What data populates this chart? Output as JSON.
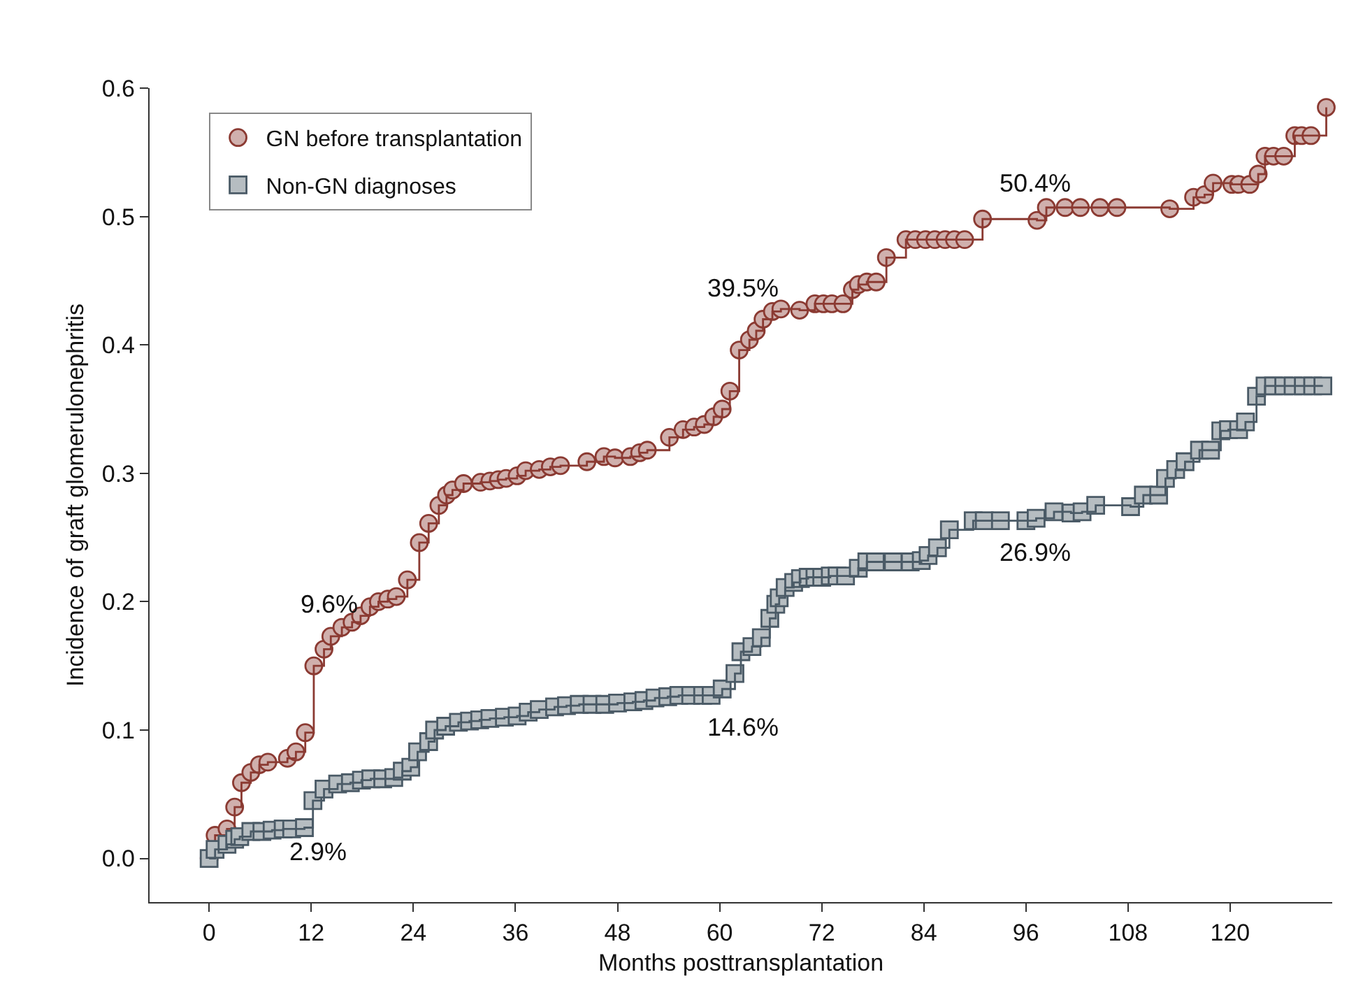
{
  "chart_data": {
    "type": "step",
    "xlabel": "Months posttransplantation",
    "ylabel": "Incidence of graft glomerulonephritis",
    "xlim": [
      -7,
      132
    ],
    "xticks": [
      0,
      12,
      24,
      36,
      48,
      60,
      72,
      84,
      96,
      108,
      120
    ],
    "ylim": [
      -0.034,
      0.6
    ],
    "yticks": [
      {
        "value": 0,
        "label": "0.0"
      },
      0.1,
      0.2,
      0.3,
      0.4,
      0.5,
      0.6
    ],
    "grid": false,
    "legend": "top left",
    "series": [
      {
        "name": "GN before transplantation",
        "color": "#8b3a32",
        "marker": "circle",
        "x": [
          0,
          0.7,
          2.1,
          3,
          3.8,
          4.9,
          5.9,
          6.9,
          9.2,
          10.2,
          11.3,
          12.3,
          13.5,
          14.3,
          15.6,
          16.8,
          17.8,
          18.9,
          19.9,
          21,
          22,
          23.3,
          24.7,
          25.8,
          27,
          27.9,
          28.6,
          29.9,
          31.9,
          33,
          34,
          34.9,
          36.2,
          37.2,
          38.8,
          40.1,
          41.3,
          44.4,
          46.4,
          47.7,
          49.5,
          50.6,
          51.5,
          54.1,
          55.7,
          57,
          58.2,
          59.3,
          60.3,
          61.2,
          62.3,
          63.5,
          64.3,
          65.1,
          66.2,
          67.2,
          69.4,
          71.2,
          72.2,
          73.2,
          74.5,
          75.6,
          76.3,
          77.3,
          78.4,
          79.6,
          81.9,
          83,
          84.2,
          85.3,
          86.5,
          87.6,
          88.8,
          90.9,
          97.3,
          98.4,
          100.6,
          102.4,
          104.7,
          106.7,
          112.9,
          115.7,
          117,
          118,
          120.2,
          121,
          122.3,
          123.3,
          124.1,
          125.1,
          126.3,
          127.6,
          128.4,
          129.5,
          131.3
        ],
        "values": [
          0,
          0.018,
          0.023,
          0.04,
          0.059,
          0.067,
          0.073,
          0.075,
          0.078,
          0.083,
          0.098,
          0.15,
          0.163,
          0.173,
          0.18,
          0.184,
          0.189,
          0.196,
          0.2,
          0.202,
          0.204,
          0.217,
          0.246,
          0.261,
          0.275,
          0.283,
          0.287,
          0.292,
          0.293,
          0.294,
          0.295,
          0.296,
          0.298,
          0.302,
          0.303,
          0.305,
          0.306,
          0.309,
          0.313,
          0.312,
          0.313,
          0.316,
          0.318,
          0.328,
          0.334,
          0.336,
          0.338,
          0.344,
          0.35,
          0.364,
          0.396,
          0.404,
          0.411,
          0.42,
          0.426,
          0.428,
          0.427,
          0.432,
          0.432,
          0.432,
          0.432,
          0.443,
          0.447,
          0.449,
          0.449,
          0.468,
          0.482,
          0.482,
          0.482,
          0.482,
          0.482,
          0.482,
          0.482,
          0.498,
          0.497,
          0.507,
          0.507,
          0.507,
          0.507,
          0.507,
          0.506,
          0.515,
          0.517,
          0.526,
          0.525,
          0.525,
          0.525,
          0.533,
          0.547,
          0.547,
          0.547,
          0.563,
          0.563,
          0.563,
          0.585
        ]
      },
      {
        "name": "Non-GN diagnoses",
        "color": "#4a5a66",
        "marker": "square",
        "x": [
          0,
          0.7,
          2.1,
          3,
          3.6,
          4.9,
          6.2,
          7.4,
          8.7,
          9.7,
          11.2,
          12.2,
          13.5,
          15.1,
          16.6,
          17.9,
          19,
          20.4,
          21.7,
          22.7,
          23.7,
          24.5,
          25.8,
          26.5,
          27.8,
          29.3,
          30.6,
          31.8,
          33,
          34.7,
          36.2,
          37.5,
          38.8,
          40.6,
          42,
          43.5,
          45,
          46.5,
          48,
          49.8,
          51.1,
          52.4,
          53.9,
          55.2,
          56.6,
          58,
          59,
          60.3,
          61.8,
          62.5,
          63.8,
          64.9,
          65.9,
          66.6,
          67,
          67.7,
          68.7,
          69.5,
          70.4,
          71.2,
          72,
          73,
          73.8,
          74.8,
          76.3,
          77.3,
          78.3,
          80.4,
          82.4,
          83.7,
          84.5,
          85.6,
          87,
          89.8,
          91.1,
          93,
          96,
          97.2,
          99.3,
          101.3,
          102.6,
          104.2,
          108.3,
          109.8,
          111.6,
          112.4,
          113.6,
          114.7,
          116.4,
          117.7,
          118.9,
          119.8,
          121,
          121.8,
          123.1,
          124.1,
          125.1,
          126.3,
          127.4,
          128.6,
          129.7,
          130.9
        ],
        "values": [
          0,
          0.007,
          0.011,
          0.015,
          0.017,
          0.021,
          0.021,
          0.022,
          0.023,
          0.023,
          0.024,
          0.045,
          0.054,
          0.058,
          0.059,
          0.061,
          0.062,
          0.062,
          0.063,
          0.068,
          0.071,
          0.083,
          0.091,
          0.1,
          0.103,
          0.106,
          0.107,
          0.108,
          0.109,
          0.11,
          0.111,
          0.114,
          0.116,
          0.118,
          0.119,
          0.12,
          0.12,
          0.12,
          0.121,
          0.122,
          0.123,
          0.125,
          0.126,
          0.127,
          0.127,
          0.127,
          0.127,
          0.132,
          0.144,
          0.161,
          0.165,
          0.172,
          0.187,
          0.198,
          0.203,
          0.211,
          0.215,
          0.218,
          0.219,
          0.219,
          0.219,
          0.22,
          0.22,
          0.22,
          0.226,
          0.231,
          0.231,
          0.231,
          0.231,
          0.232,
          0.236,
          0.242,
          0.256,
          0.263,
          0.263,
          0.263,
          0.263,
          0.265,
          0.27,
          0.269,
          0.27,
          0.275,
          0.274,
          0.283,
          0.283,
          0.296,
          0.303,
          0.309,
          0.318,
          0.318,
          0.333,
          0.334,
          0.334,
          0.34,
          0.36,
          0.368,
          0.368,
          0.368,
          0.368,
          0.368,
          0.368,
          0.368
        ]
      }
    ],
    "annotations": [
      "9.6%",
      "2.9%",
      "39.5%",
      "14.6%",
      "50.4%",
      "26.9%"
    ]
  }
}
